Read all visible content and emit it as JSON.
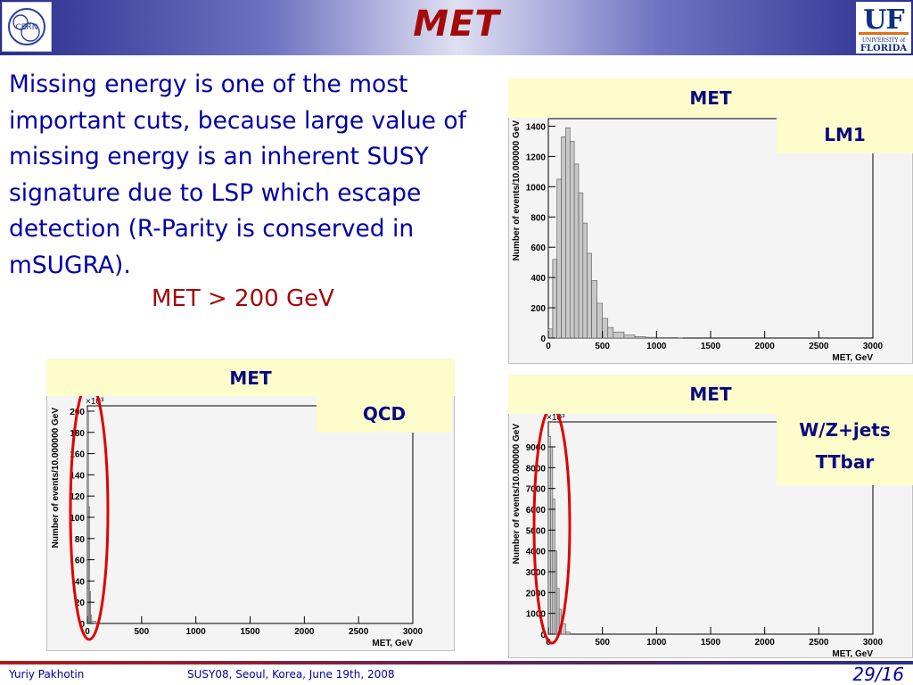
{
  "slide": {
    "title": "MET",
    "body": "Missing energy is one of the most important cuts, because large value of missing energy is an inherent SUSY signature due to LSP which escape detection (R-Parity is conserved in mSUGRA).",
    "cut": "MET > 200 GeV"
  },
  "logos": {
    "left": "CERN",
    "right_big": "UF",
    "right_small": "UNIVERSITY of FLORIDA"
  },
  "plots": {
    "lm1": {
      "header": "MET",
      "tag": "LM1"
    },
    "qcd": {
      "header": "MET",
      "tag": "QCD"
    },
    "wz": {
      "header": "MET",
      "tag_line1": "W/Z+jets",
      "tag_line2": "TTbar"
    }
  },
  "chart_data": [
    {
      "type": "bar",
      "title": "MET",
      "legend": "LM1",
      "xlabel": "MET, GeV",
      "ylabel": "Number of events/10.000000 GeV",
      "xlim": [
        0,
        3000
      ],
      "ylim": [
        0,
        1450
      ],
      "x_ticks": [
        "0",
        "500",
        "1000",
        "1500",
        "2000",
        "2500",
        "3000"
      ],
      "y_ticks": [
        "0",
        "200",
        "400",
        "600",
        "800",
        "1000",
        "1200",
        "1400"
      ],
      "bins_x": [
        0,
        40,
        80,
        120,
        160,
        200,
        240,
        280,
        320,
        360,
        400,
        450,
        500,
        550,
        600,
        700,
        800,
        900,
        1000,
        1200
      ],
      "bins_y": [
        60,
        520,
        1050,
        1330,
        1390,
        1300,
        1150,
        960,
        760,
        560,
        380,
        230,
        130,
        70,
        40,
        20,
        10,
        5,
        3,
        1
      ]
    },
    {
      "type": "bar",
      "title": "MET",
      "legend": "QCD",
      "xlabel": "MET, GeV",
      "ylabel": "Number of events/10.000000 GeV",
      "y_multiplier": "×10³",
      "xlim": [
        0,
        3000
      ],
      "ylim": [
        0,
        205
      ],
      "x_ticks": [
        "0",
        "500",
        "1000",
        "1500",
        "2000",
        "2500",
        "3000"
      ],
      "y_ticks": [
        "0",
        "20",
        "40",
        "60",
        "80",
        "100",
        "120",
        "140",
        "160",
        "180",
        "200"
      ],
      "bins_x": [
        0,
        10,
        20,
        30,
        40
      ],
      "bins_y": [
        200,
        110,
        30,
        8,
        2
      ]
    },
    {
      "type": "bar",
      "title": "MET",
      "legend": "W/Z+jets TTbar",
      "xlabel": "MET, GeV",
      "ylabel": "Number of events/10.000000 GeV",
      "y_multiplier": "×10³",
      "xlim": [
        0,
        3000
      ],
      "ylim": [
        0,
        10200
      ],
      "x_ticks": [
        "0",
        "500",
        "1000",
        "1500",
        "2000",
        "2500",
        "3000"
      ],
      "y_ticks": [
        "0",
        "1000",
        "2000",
        "3000",
        "4000",
        "5000",
        "6000",
        "7000",
        "8000",
        "9000"
      ],
      "bins_x": [
        0,
        20,
        40,
        60,
        80,
        100,
        120,
        160
      ],
      "bins_y": [
        9500,
        9000,
        6500,
        4000,
        2200,
        1200,
        500,
        100
      ]
    }
  ],
  "footer": {
    "author": "Yuriy Pakhotin",
    "event": "SUSY08, Seoul, Korea, June 19th, 2008",
    "page": "29/16"
  }
}
